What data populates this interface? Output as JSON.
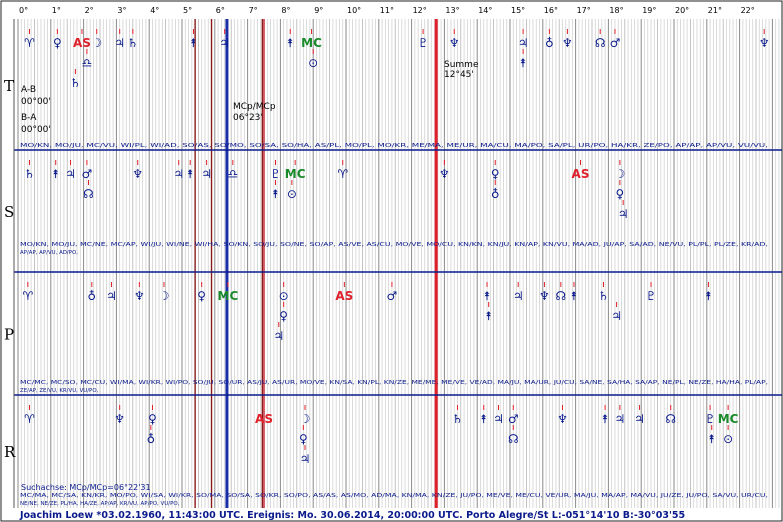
{
  "degree_labels": [
    "0°",
    "1°",
    "2°",
    "3°",
    "4°",
    "5°",
    "6°",
    "7°",
    "8°",
    "9°",
    "10°",
    "11°",
    "12°",
    "13°",
    "14°",
    "15°",
    "16°",
    "17°",
    "18°",
    "19°",
    "20°",
    "21°",
    "22°"
  ],
  "rows": [
    {
      "label": "T",
      "name": "T",
      "symbols": [
        {
          "g": "♈",
          "deg": 0.35,
          "lvl": 0,
          "c": "#0a1a8c"
        },
        {
          "g": "♀",
          "deg": 1.2,
          "lvl": 0,
          "c": "#0a1a8c"
        },
        {
          "g": "AS",
          "deg": 1.95,
          "lvl": 0,
          "c": "#e0202a"
        },
        {
          "g": "☽",
          "deg": 2.4,
          "lvl": 0,
          "c": "#0a1a8c"
        },
        {
          "g": "♃",
          "deg": 3.1,
          "lvl": 0,
          "c": "#0a1a8c"
        },
        {
          "g": "♄",
          "deg": 3.5,
          "lvl": 0,
          "c": "#0a1a8c"
        },
        {
          "g": "⯭",
          "deg": 5.35,
          "lvl": 0,
          "c": "#0a1a8c"
        },
        {
          "g": "♃",
          "deg": 6.3,
          "lvl": 0,
          "c": "#0a1a8c"
        },
        {
          "g": "⯭",
          "deg": 8.3,
          "lvl": 0,
          "c": "#0a1a8c"
        },
        {
          "g": "MC",
          "deg": 8.95,
          "lvl": 0,
          "c": "#1a8a2a"
        },
        {
          "g": "♇",
          "deg": 12.35,
          "lvl": 0,
          "c": "#0a1a8c"
        },
        {
          "g": "♆",
          "deg": 13.3,
          "lvl": 0,
          "c": "#0a1a8c"
        },
        {
          "g": "♃",
          "deg": 15.4,
          "lvl": 0,
          "c": "#0a1a8c"
        },
        {
          "g": "♁",
          "deg": 16.2,
          "lvl": 0,
          "c": "#0a1a8c"
        },
        {
          "g": "♆",
          "deg": 16.75,
          "lvl": 0,
          "c": "#0a1a8c"
        },
        {
          "g": "☊",
          "deg": 17.75,
          "lvl": 0,
          "c": "#0a1a8c"
        },
        {
          "g": "♂",
          "deg": 18.2,
          "lvl": 0,
          "c": "#0a1a8c"
        },
        {
          "g": "♆",
          "deg": 22.75,
          "lvl": 0,
          "c": "#0a1a8c"
        },
        {
          "g": "♎",
          "deg": 2.1,
          "lvl": 1,
          "c": "#0a1a8c"
        },
        {
          "g": "⊙",
          "deg": 9.0,
          "lvl": 1,
          "c": "#0a1a8c"
        },
        {
          "g": "⯭",
          "deg": 15.4,
          "lvl": 1,
          "c": "#0a1a8c"
        },
        {
          "g": "♄",
          "deg": 1.75,
          "lvl": 2,
          "c": "#0a1a8c"
        }
      ],
      "pairs": [
        "MO/KN, MO/JU, MC/VU, WI/PL, WI/AD, SO/AS, SO/MO, SO/SA, SO/HA, AS/PL, MO/PL, MO/KR, ME/MA, ME/UR, MA/CU, MA/PO, SA/PL, UR/PO, HA/KR, ZE/PO, AP/AP, AP/VU, VU/VU,"
      ]
    },
    {
      "label": "S",
      "name": "S",
      "symbols": [
        {
          "g": "♄",
          "deg": 0.35,
          "lvl": 0,
          "c": "#0a1a8c"
        },
        {
          "g": "⯭",
          "deg": 1.15,
          "lvl": 0,
          "c": "#0a1a8c"
        },
        {
          "g": "♃",
          "deg": 1.6,
          "lvl": 0,
          "c": "#0a1a8c"
        },
        {
          "g": "♂",
          "deg": 2.1,
          "lvl": 0,
          "c": "#0a1a8c"
        },
        {
          "g": "♆",
          "deg": 3.65,
          "lvl": 0,
          "c": "#0a1a8c"
        },
        {
          "g": "♃",
          "deg": 4.9,
          "lvl": 0,
          "c": "#0a1a8c"
        },
        {
          "g": "⯭",
          "deg": 5.25,
          "lvl": 0,
          "c": "#0a1a8c"
        },
        {
          "g": "♃",
          "deg": 5.75,
          "lvl": 0,
          "c": "#0a1a8c"
        },
        {
          "g": "♎",
          "deg": 6.55,
          "lvl": 0,
          "c": "#0a1a8c"
        },
        {
          "g": "♇",
          "deg": 7.85,
          "lvl": 0,
          "c": "#0a1a8c"
        },
        {
          "g": "MC",
          "deg": 8.45,
          "lvl": 0,
          "c": "#1a8a2a"
        },
        {
          "g": "♈",
          "deg": 9.9,
          "lvl": 0,
          "c": "#0a1a8c"
        },
        {
          "g": "♆",
          "deg": 13.0,
          "lvl": 0,
          "c": "#0a1a8c"
        },
        {
          "g": "♀",
          "deg": 14.55,
          "lvl": 0,
          "c": "#0a1a8c"
        },
        {
          "g": "AS",
          "deg": 17.15,
          "lvl": 0,
          "c": "#e0202a"
        },
        {
          "g": "☽",
          "deg": 18.35,
          "lvl": 0,
          "c": "#0a1a8c"
        },
        {
          "g": "☊",
          "deg": 2.15,
          "lvl": 1,
          "c": "#0a1a8c"
        },
        {
          "g": "⯭",
          "deg": 7.85,
          "lvl": 1,
          "c": "#0a1a8c"
        },
        {
          "g": "⊙",
          "deg": 8.35,
          "lvl": 1,
          "c": "#0a1a8c"
        },
        {
          "g": "♁",
          "deg": 14.55,
          "lvl": 1,
          "c": "#0a1a8c"
        },
        {
          "g": "♀",
          "deg": 18.35,
          "lvl": 1,
          "c": "#0a1a8c"
        },
        {
          "g": "♃",
          "deg": 18.45,
          "lvl": 2,
          "c": "#0a1a8c"
        }
      ],
      "pairs": [
        "MO/KN, MO/JU, MC/NE, MC/AP, WI/JU, WI/NE, WI/HA, SO/KN, SO/JU, SO/NE, SO/AP, AS/VE, AS/CU, MO/VE, MO/CU, KN/KN, KN/JU, KN/AP, KN/VU, MA/AD, JU/AP, SA/AD, NE/VU, PL/PL, PL/ZE, KR/AD,",
        "AP/AP, AP/VU, AD/PO,"
      ]
    },
    {
      "label": "P",
      "name": "P",
      "symbols": [
        {
          "g": "♈",
          "deg": 0.3,
          "lvl": 0,
          "c": "#0a1a8c"
        },
        {
          "g": "♁",
          "deg": 2.25,
          "lvl": 0,
          "c": "#0a1a8c"
        },
        {
          "g": "♃",
          "deg": 2.85,
          "lvl": 0,
          "c": "#0a1a8c"
        },
        {
          "g": "♆",
          "deg": 3.7,
          "lvl": 0,
          "c": "#0a1a8c"
        },
        {
          "g": "☽",
          "deg": 4.45,
          "lvl": 0,
          "c": "#0a1a8c"
        },
        {
          "g": "♀",
          "deg": 5.6,
          "lvl": 0,
          "c": "#0a1a8c"
        },
        {
          "g": "MC",
          "deg": 6.4,
          "lvl": 0,
          "c": "#1a8a2a"
        },
        {
          "g": "⊙",
          "deg": 8.1,
          "lvl": 0,
          "c": "#0a1a8c"
        },
        {
          "g": "AS",
          "deg": 9.95,
          "lvl": 0,
          "c": "#e0202a"
        },
        {
          "g": "♂",
          "deg": 11.4,
          "lvl": 0,
          "c": "#0a1a8c"
        },
        {
          "g": "⯭",
          "deg": 14.3,
          "lvl": 0,
          "c": "#0a1a8c"
        },
        {
          "g": "♃",
          "deg": 15.25,
          "lvl": 0,
          "c": "#0a1a8c"
        },
        {
          "g": "♆",
          "deg": 16.05,
          "lvl": 0,
          "c": "#0a1a8c"
        },
        {
          "g": "☊",
          "deg": 16.55,
          "lvl": 0,
          "c": "#0a1a8c"
        },
        {
          "g": "⯭",
          "deg": 16.95,
          "lvl": 0,
          "c": "#0a1a8c"
        },
        {
          "g": "♄",
          "deg": 17.85,
          "lvl": 0,
          "c": "#0a1a8c"
        },
        {
          "g": "♇",
          "deg": 19.3,
          "lvl": 0,
          "c": "#0a1a8c"
        },
        {
          "g": "⯭",
          "deg": 21.05,
          "lvl": 0,
          "c": "#0a1a8c"
        },
        {
          "g": "♀",
          "deg": 8.1,
          "lvl": 1,
          "c": "#0a1a8c"
        },
        {
          "g": "⯭",
          "deg": 14.35,
          "lvl": 1,
          "c": "#0a1a8c"
        },
        {
          "g": "♃",
          "deg": 18.25,
          "lvl": 1,
          "c": "#0a1a8c"
        },
        {
          "g": "♃",
          "deg": 7.95,
          "lvl": 2,
          "c": "#0a1a8c"
        }
      ],
      "pairs": [
        "MC/MC, MC/SO, MC/CU, WI/MA, WI/KR, WI/PO, SO/JU, SO/UR, AS/JU, AS/UR, MO/VE, KN/SA, KN/PL, KN/ZE, ME/ME, ME/VE, VE/AD, MA/JU, MA/UR, JU/CU, SA/NE, SA/HA, SA/AP, NE/PL, NE/ZE, HA/HA, PL/AP,",
        "ZE/AP, ZE/VU, KR/VU, VU/PO,"
      ]
    },
    {
      "label": "R",
      "name": "R",
      "symbols": [
        {
          "g": "♈",
          "deg": 0.35,
          "lvl": 0,
          "c": "#0a1a8c"
        },
        {
          "g": "♆",
          "deg": 3.1,
          "lvl": 0,
          "c": "#0a1a8c"
        },
        {
          "g": "♀",
          "deg": 4.1,
          "lvl": 0,
          "c": "#0a1a8c"
        },
        {
          "g": "AS",
          "deg": 7.5,
          "lvl": 0,
          "c": "#e0202a"
        },
        {
          "g": "☽",
          "deg": 8.75,
          "lvl": 0,
          "c": "#0a1a8c"
        },
        {
          "g": "♄",
          "deg": 13.4,
          "lvl": 0,
          "c": "#0a1a8c"
        },
        {
          "g": "⯭",
          "deg": 14.2,
          "lvl": 0,
          "c": "#0a1a8c"
        },
        {
          "g": "♃",
          "deg": 14.65,
          "lvl": 0,
          "c": "#0a1a8c"
        },
        {
          "g": "♂",
          "deg": 15.1,
          "lvl": 0,
          "c": "#0a1a8c"
        },
        {
          "g": "♆",
          "deg": 16.6,
          "lvl": 0,
          "c": "#0a1a8c"
        },
        {
          "g": "⯭",
          "deg": 17.9,
          "lvl": 0,
          "c": "#0a1a8c"
        },
        {
          "g": "♃",
          "deg": 18.35,
          "lvl": 0,
          "c": "#0a1a8c"
        },
        {
          "g": "♃",
          "deg": 18.95,
          "lvl": 0,
          "c": "#0a1a8c"
        },
        {
          "g": "☊",
          "deg": 19.9,
          "lvl": 0,
          "c": "#0a1a8c"
        },
        {
          "g": "♇",
          "deg": 21.1,
          "lvl": 0,
          "c": "#0a1a8c"
        },
        {
          "g": "MC",
          "deg": 21.65,
          "lvl": 0,
          "c": "#1a8a2a"
        },
        {
          "g": "♁",
          "deg": 4.05,
          "lvl": 1,
          "c": "#0a1a8c"
        },
        {
          "g": "♀",
          "deg": 8.7,
          "lvl": 1,
          "c": "#0a1a8c"
        },
        {
          "g": "☊",
          "deg": 15.1,
          "lvl": 1,
          "c": "#0a1a8c"
        },
        {
          "g": "⯭",
          "deg": 21.15,
          "lvl": 1,
          "c": "#0a1a8c"
        },
        {
          "g": "⊙",
          "deg": 21.65,
          "lvl": 1,
          "c": "#0a1a8c"
        },
        {
          "g": "♃",
          "deg": 8.75,
          "lvl": 2,
          "c": "#0a1a8c"
        }
      ],
      "pairs": [
        "MC/MA, MC/SA, KN/KR, MO/PO, WI/SA, WI/KR, SO/MA, SO/SA, SO/KR, SO/PO, AS/AS, AS/MO, AD/MA, KN/MA, KN/ZE, JU/PO, ME/VE, ME/CU, VE/UR, MA/JU, MA/AP, MA/VU, JU/ZE, JU/PO, SA/VU, UR/CU,",
        "NE/NE, NE/ZE, PL/HA, HA/ZE, AP/AP, KR/VU, AP/PO, VU/PO,"
      ]
    }
  ],
  "annotations": {
    "ab_label": "A-B",
    "ab_value": "00°00'",
    "ba_label": "B-A",
    "ba_value": "00°00'",
    "mcp_label": "MCp/MCp",
    "mcp_value": "06°23'",
    "summe_label": "Summe",
    "summe_value": "12°45'",
    "suchachse": "Suchachse: MCp/MCp=06°22'31"
  },
  "footer": "Joachim Loew  *03.02.1960, 11:43:00 UTC. Ereignis: Mo. 30.06.2014, 20:00:00 UTC. Porto Alegre/St L:-051°14'10 B:-30°03'55",
  "marker_lines": [
    {
      "deg": 6.37,
      "color": "#1a2ea8",
      "kind": "mcp"
    },
    {
      "deg": 12.75,
      "color": "#e0202a",
      "kind": "summe"
    },
    {
      "deg": 7.5,
      "color": "#c02030",
      "kind": "as"
    },
    {
      "deg": 5.4,
      "color": "#8a1a1a",
      "kind": "mid"
    },
    {
      "deg": 5.9,
      "color": "#8a1a1a",
      "kind": "mid"
    },
    {
      "deg": 7.45,
      "color": "#8a1a1a",
      "kind": "mid"
    }
  ],
  "colors": {
    "navy": "#0a1a8c",
    "red": "#e0202a",
    "green": "#1a8a2a"
  }
}
